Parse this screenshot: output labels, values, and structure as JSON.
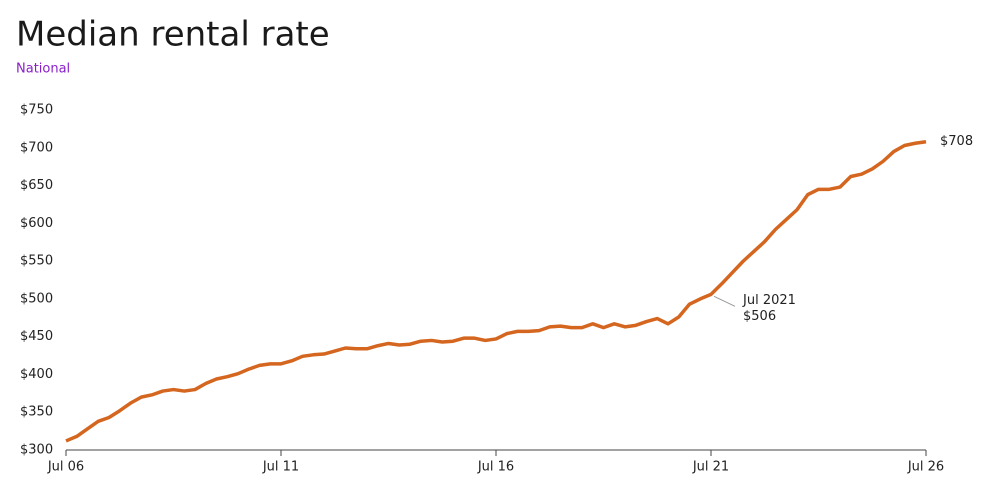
{
  "chart_data": {
    "type": "line",
    "title": "Median rental rate",
    "subtitle": "National",
    "x": [
      "2006-07",
      "2006-10",
      "2007-01",
      "2007-04",
      "2007-07",
      "2007-10",
      "2008-01",
      "2008-04",
      "2008-07",
      "2008-10",
      "2009-01",
      "2009-04",
      "2009-07",
      "2009-10",
      "2010-01",
      "2010-04",
      "2010-07",
      "2010-10",
      "2011-01",
      "2011-04",
      "2011-07",
      "2011-10",
      "2012-01",
      "2012-04",
      "2012-07",
      "2012-10",
      "2013-01",
      "2013-04",
      "2013-07",
      "2013-10",
      "2014-01",
      "2014-04",
      "2014-07",
      "2014-10",
      "2015-01",
      "2015-04",
      "2015-07",
      "2015-10",
      "2016-01",
      "2016-04",
      "2016-07",
      "2016-10",
      "2017-01",
      "2017-04",
      "2017-07",
      "2017-10",
      "2018-01",
      "2018-04",
      "2018-07",
      "2018-10",
      "2019-01",
      "2019-04",
      "2019-07",
      "2019-10",
      "2020-01",
      "2020-04",
      "2020-07",
      "2020-10",
      "2021-01",
      "2021-04",
      "2021-07",
      "2021-10",
      "2022-01",
      "2022-04",
      "2022-07",
      "2022-10",
      "2023-01",
      "2023-04",
      "2023-07",
      "2023-10",
      "2024-01",
      "2024-04",
      "2024-07",
      "2024-10",
      "2025-01",
      "2025-04",
      "2025-07",
      "2025-10",
      "2026-01",
      "2026-04",
      "2026-07"
    ],
    "values": [
      312,
      318,
      328,
      338,
      343,
      352,
      362,
      370,
      373,
      378,
      380,
      378,
      380,
      388,
      394,
      397,
      401,
      407,
      412,
      414,
      414,
      418,
      424,
      426,
      427,
      431,
      435,
      434,
      434,
      438,
      441,
      439,
      440,
      444,
      445,
      443,
      444,
      448,
      448,
      445,
      447,
      454,
      457,
      457,
      458,
      463,
      464,
      462,
      462,
      467,
      462,
      467,
      463,
      465,
      470,
      474,
      467,
      476,
      493,
      500,
      506,
      520,
      535,
      550,
      563,
      576,
      592,
      605,
      618,
      638,
      645,
      645,
      648,
      662,
      665,
      672,
      682,
      695,
      703,
      706,
      708
    ],
    "color": "#d4661f",
    "last_value_label": "$708",
    "annotation": {
      "x": "2021-07",
      "y": 506,
      "label": "Jul 2021",
      "value_label": "$506"
    },
    "xlim": [
      "2006-07",
      "2026-07"
    ],
    "xticks": [
      {
        "value": "2006-07",
        "label": "Jul 06"
      },
      {
        "value": "2011-07",
        "label": "Jul 11"
      },
      {
        "value": "2016-07",
        "label": "Jul 16"
      },
      {
        "value": "2021-07",
        "label": "Jul 21"
      },
      {
        "value": "2026-07",
        "label": "Jul 26"
      }
    ],
    "ylim": [
      300,
      750
    ],
    "yticks": [
      {
        "value": 300,
        "label": "$300"
      },
      {
        "value": 350,
        "label": "$350"
      },
      {
        "value": 400,
        "label": "$400"
      },
      {
        "value": 450,
        "label": "$450"
      },
      {
        "value": 500,
        "label": "$500"
      },
      {
        "value": 550,
        "label": "$550"
      },
      {
        "value": 600,
        "label": "$600"
      },
      {
        "value": 650,
        "label": "$650"
      },
      {
        "value": 700,
        "label": "$700"
      },
      {
        "value": 750,
        "label": "$750"
      }
    ],
    "grid": false
  }
}
